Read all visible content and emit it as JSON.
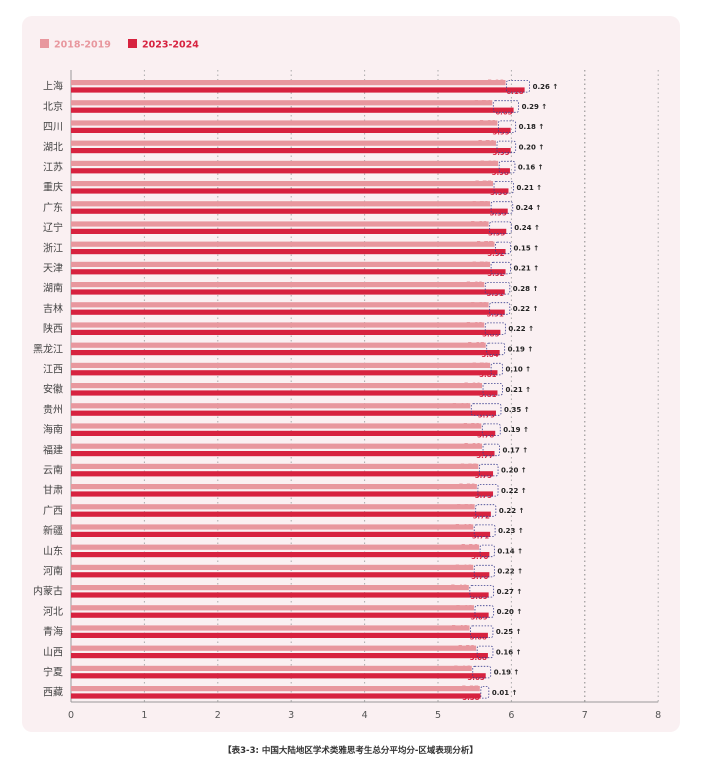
{
  "chart_data": {
    "type": "bar",
    "orientation": "horizontal",
    "categories": [
      "上海",
      "北京",
      "四川",
      "湖北",
      "江苏",
      "重庆",
      "广东",
      "辽宁",
      "浙江",
      "天津",
      "湖南",
      "吉林",
      "陕西",
      "黑龙江",
      "江西",
      "安徽",
      "贵州",
      "海南",
      "福建",
      "云南",
      "甘肃",
      "广西",
      "新疆",
      "山东",
      "河南",
      "内蒙古",
      "河北",
      "青海",
      "山西",
      "宁夏",
      "西藏"
    ],
    "series": [
      {
        "name": "2018-2019",
        "color": "#e8979e",
        "values": [
          5.92,
          5.74,
          5.81,
          5.79,
          5.82,
          5.75,
          5.71,
          5.69,
          5.77,
          5.71,
          5.63,
          5.69,
          5.63,
          5.65,
          5.71,
          5.6,
          5.44,
          5.59,
          5.6,
          5.55,
          5.53,
          5.5,
          5.48,
          5.56,
          5.48,
          5.42,
          5.49,
          5.43,
          5.52,
          5.46,
          5.57
        ]
      },
      {
        "name": "2023-2024",
        "color": "#d7223f",
        "values": [
          6.18,
          6.03,
          5.99,
          5.99,
          5.98,
          5.96,
          5.95,
          5.93,
          5.92,
          5.92,
          5.91,
          5.91,
          5.85,
          5.84,
          5.81,
          5.81,
          5.79,
          5.78,
          5.77,
          5.75,
          5.75,
          5.72,
          5.71,
          5.7,
          5.7,
          5.69,
          5.69,
          5.68,
          5.68,
          5.65,
          5.58
        ]
      }
    ],
    "differences": [
      "0.26",
      "0.29",
      "0.18",
      "0.20",
      "0.16",
      "0.21",
      "0.24",
      "0.24",
      "0.15",
      "0.21",
      "0.28",
      "0.22",
      "0.22",
      "0.19",
      "0.10",
      "0.21",
      "0.35",
      "0.19",
      "0.17",
      "0.20",
      "0.22",
      "0.22",
      "0.23",
      "0.14",
      "0.22",
      "0.27",
      "0.20",
      "0.25",
      "0.16",
      "0.19",
      "0.01"
    ],
    "arrow": "↑",
    "xlim": [
      0,
      8
    ],
    "xticks": [
      "0",
      "1",
      "2",
      "3",
      "4",
      "5",
      "6",
      "7",
      "8"
    ],
    "grid": true,
    "legend_position": "top-left"
  },
  "caption": "【表3-3: 中国大陆地区学术类雅思考生总分平均分-区域表现分析】"
}
